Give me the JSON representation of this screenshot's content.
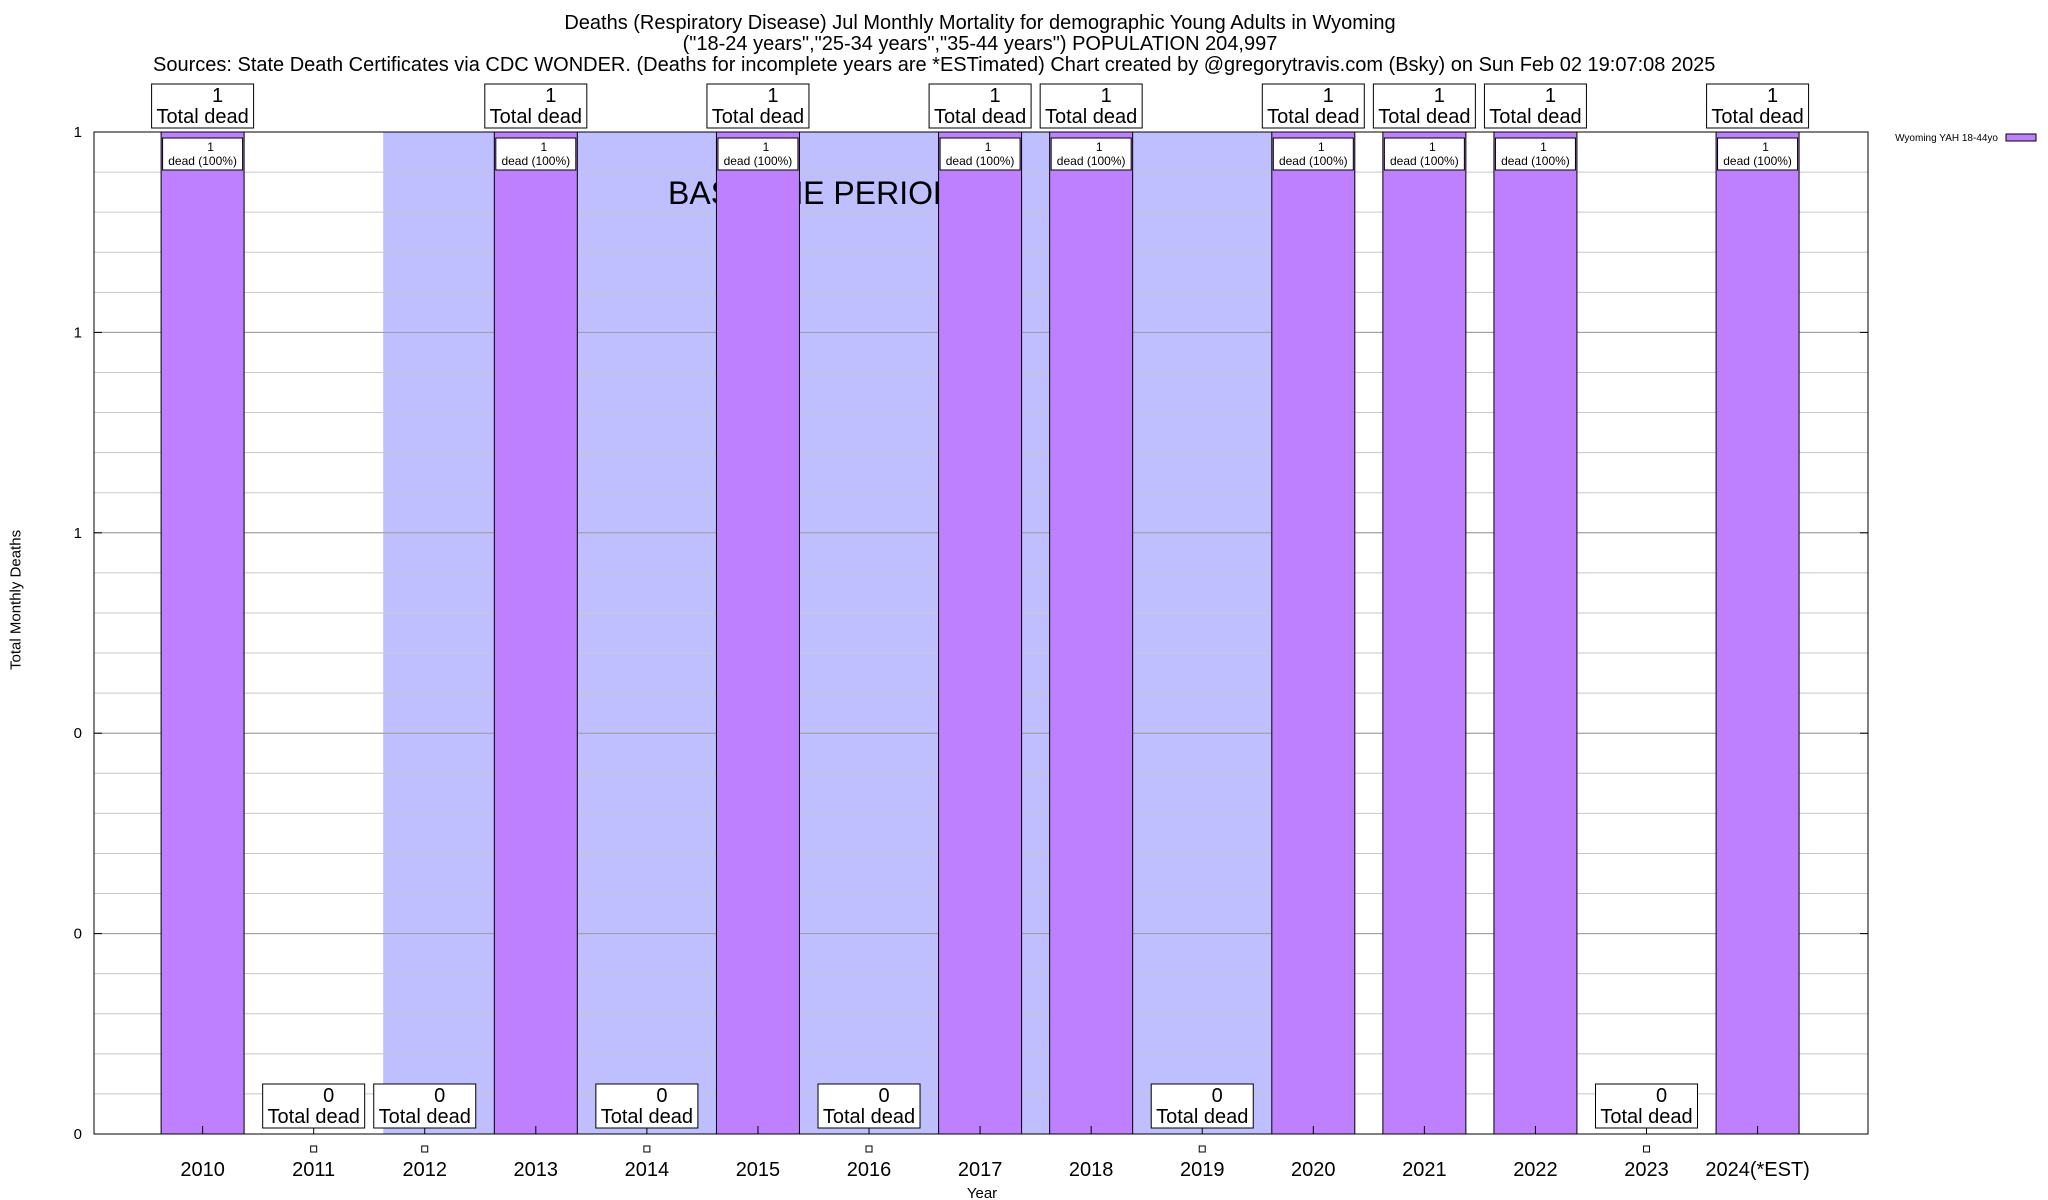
{
  "title": {
    "line1": "Deaths (Respiratory Disease) Jul Monthly Mortality for demographic Young Adults in Wyoming",
    "line2": "(\"18-24 years\",\"25-34 years\",\"35-44 years\") POPULATION 204,997",
    "line3": "Sources: State Death Certificates via CDC WONDER. (Deaths for incomplete years are *ESTimated)                Chart created by @gregorytravis.com (Bsky) on Sun Feb 02 19:07:08 2025"
  },
  "chart_data": {
    "type": "bar",
    "categories": [
      "2010",
      "2011",
      "2012",
      "2013",
      "2014",
      "2015",
      "2016",
      "2017",
      "2018",
      "2019",
      "2020",
      "2021",
      "2022",
      "2023",
      "2024(*EST)"
    ],
    "series": [
      {
        "name": "Wyoming YAH 18-44yo",
        "values": [
          1,
          0,
          0,
          1,
          0,
          1,
          0,
          1,
          1,
          0,
          1,
          1,
          1,
          0,
          1
        ],
        "color": "#bf80ff"
      }
    ],
    "total_labels": [
      "1\nTotal dead",
      "0\nTotal dead",
      "0\nTotal dead",
      "1\nTotal dead",
      "0\nTotal dead",
      "1\nTotal dead",
      "0\nTotal dead",
      "1\nTotal dead",
      "1\nTotal dead",
      "0\nTotal dead",
      "1\nTotal dead",
      "1\nTotal dead",
      "1\nTotal dead",
      "0\nTotal dead",
      "1\nTotal dead"
    ],
    "bar_labels": [
      "1\ndead (100%)",
      "",
      "",
      "1\ndead (100%)",
      "",
      "1\ndead (100%)",
      "",
      "1\ndead (100%)",
      "1\ndead (100%)",
      "",
      "1\ndead (100%)",
      "1\ndead (100%)",
      "1\ndead (100%)",
      "",
      "1\ndead (100%)"
    ],
    "baseline_period": {
      "label": "BASELINE PERIOD",
      "from": "2012",
      "to": "2019",
      "color": "#bfbfff"
    },
    "xlabel": "Year",
    "ylabel": "Total Monthly Deaths",
    "ylim": [
      0,
      1
    ],
    "yticks": [
      0,
      0.2,
      0.4,
      0.6,
      0.8,
      1
    ],
    "ytick_labels": [
      "0",
      "0",
      "0",
      "1",
      "1",
      "1"
    ],
    "grid": true,
    "legend": {
      "position": "top-right",
      "entries": [
        "Wyoming YAH 18-44yo"
      ]
    }
  }
}
